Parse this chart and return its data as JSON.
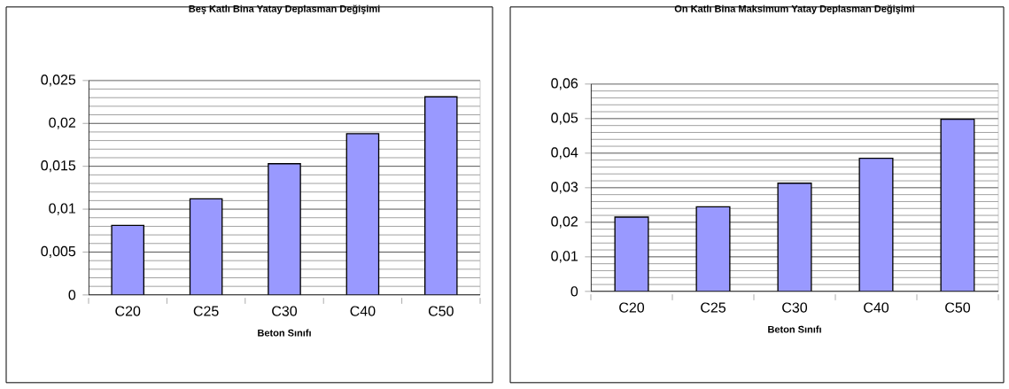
{
  "chart_data": [
    {
      "type": "bar",
      "title": "Beş Katlı Bina Yatay Deplasman Değişimi",
      "xlabel": "Beton Sınıfı",
      "categories": [
        "C20",
        "C25",
        "C30",
        "C40",
        "C50"
      ],
      "values": [
        0.0081,
        0.0112,
        0.0153,
        0.0188,
        0.0231
      ],
      "color": "#9999ff",
      "ylim": [
        0,
        0.025
      ],
      "yticks": [
        0,
        {
          "value": 0.005,
          "label": "0,005"
        },
        {
          "value": 0.01,
          "label": "0,01"
        },
        {
          "value": 0.015,
          "label": "0,015"
        },
        {
          "value": 0.02,
          "label": "0,02"
        },
        {
          "value": 0.025,
          "label": "0,025"
        }
      ],
      "grid": "y"
    },
    {
      "type": "bar",
      "title": "On Katlı Bina Maksimum Yatay Deplasman Değişimi",
      "xlabel": "Beton Sınıfı",
      "categories": [
        "C20",
        "C25",
        "C30",
        "C40",
        "C50"
      ],
      "values": [
        0.0215,
        0.0245,
        0.0313,
        0.0385,
        0.0498
      ],
      "color": "#9999ff",
      "ylim": [
        0,
        0.06
      ],
      "yticks": [
        0,
        {
          "value": 0.01,
          "label": "0,01"
        },
        {
          "value": 0.02,
          "label": "0,02"
        },
        {
          "value": 0.03,
          "label": "0,03"
        },
        {
          "value": 0.04,
          "label": "0,04"
        },
        {
          "value": 0.05,
          "label": "0,05"
        },
        {
          "value": 0.06,
          "label": "0,06"
        }
      ],
      "grid": "y"
    }
  ]
}
